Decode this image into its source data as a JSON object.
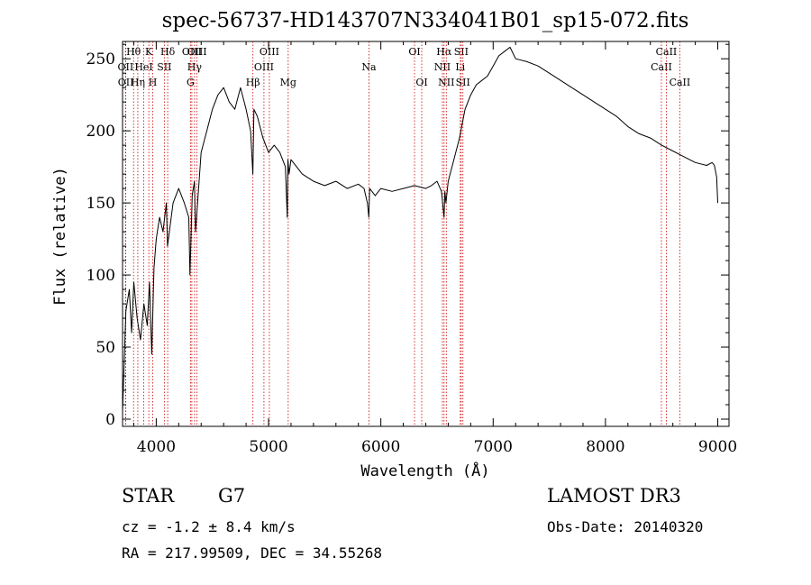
{
  "chart_data": {
    "type": "line",
    "title": "spec-56737-HD143707N334041B01_sp15-072.fits",
    "xlabel": "Wavelength (Å)",
    "ylabel": "Flux (relative)",
    "xlim": [
      3700,
      9100
    ],
    "ylim": [
      -5,
      262
    ],
    "xticks": [
      4000,
      5000,
      6000,
      7000,
      8000,
      9000
    ],
    "yticks": [
      0,
      50,
      100,
      150,
      200,
      250
    ],
    "grid": false,
    "line_color": "#000000",
    "marker_color": "#cc0000",
    "series": [
      {
        "name": "flux",
        "x": [
          3700,
          3730,
          3760,
          3780,
          3800,
          3830,
          3860,
          3890,
          3920,
          3940,
          3960,
          3980,
          4000,
          4030,
          4060,
          4090,
          4100,
          4150,
          4200,
          4250,
          4290,
          4300,
          4320,
          4340,
          4350,
          4400,
          4450,
          4500,
          4550,
          4600,
          4650,
          4700,
          4750,
          4800,
          4840,
          4860,
          4870,
          4900,
          4950,
          5000,
          5050,
          5100,
          5150,
          5167,
          5172,
          5183,
          5200,
          5250,
          5300,
          5400,
          5500,
          5600,
          5700,
          5800,
          5850,
          5880,
          5893,
          5900,
          5950,
          6000,
          6100,
          6200,
          6300,
          6400,
          6450,
          6500,
          6540,
          6563,
          6570,
          6580,
          6600,
          6650,
          6700,
          6750,
          6800,
          6850,
          6900,
          6950,
          7000,
          7050,
          7100,
          7150,
          7200,
          7300,
          7400,
          7500,
          7600,
          7700,
          7800,
          7900,
          8000,
          8100,
          8200,
          8300,
          8400,
          8500,
          8600,
          8700,
          8800,
          8900,
          8950,
          8970,
          8990,
          9000
        ],
        "y": [
          5,
          75,
          90,
          60,
          95,
          70,
          55,
          80,
          65,
          95,
          45,
          105,
          125,
          140,
          130,
          150,
          120,
          150,
          160,
          150,
          140,
          100,
          155,
          165,
          130,
          185,
          200,
          215,
          225,
          230,
          220,
          215,
          230,
          215,
          200,
          170,
          215,
          210,
          195,
          185,
          190,
          185,
          175,
          140,
          180,
          170,
          180,
          175,
          170,
          165,
          162,
          165,
          160,
          163,
          160,
          150,
          140,
          160,
          155,
          160,
          158,
          160,
          162,
          160,
          162,
          165,
          158,
          140,
          158,
          150,
          165,
          180,
          195,
          215,
          225,
          232,
          235,
          238,
          245,
          252,
          255,
          258,
          250,
          248,
          245,
          240,
          235,
          230,
          225,
          220,
          215,
          210,
          203,
          198,
          195,
          190,
          186,
          182,
          178,
          176,
          178,
          176,
          168,
          150
        ]
      }
    ],
    "line_markers": [
      {
        "label": "OII",
        "x": 3727,
        "row": 2
      },
      {
        "label": "OII",
        "x": 3729,
        "row": 3
      },
      {
        "label": "Hθ",
        "x": 3798,
        "row": 1
      },
      {
        "label": "Hη",
        "x": 3836,
        "row": 3
      },
      {
        "label": "HeI",
        "x": 3889,
        "row": 2
      },
      {
        "label": "K",
        "x": 3934,
        "row": 1
      },
      {
        "label": "H",
        "x": 3969,
        "row": 3
      },
      {
        "label": "SII",
        "x": 4072,
        "row": 2
      },
      {
        "label": "Hδ",
        "x": 4102,
        "row": 1
      },
      {
        "label": "G",
        "x": 4305,
        "row": 3
      },
      {
        "label": "OIII",
        "x": 4317,
        "row": 1
      },
      {
        "label": "Hγ",
        "x": 4341,
        "row": 2
      },
      {
        "label": "OIII",
        "x": 4363,
        "row": 1
      },
      {
        "label": "Hβ",
        "x": 4861,
        "row": 3
      },
      {
        "label": "OIII",
        "x": 4959,
        "row": 2
      },
      {
        "label": "OIII",
        "x": 5007,
        "row": 1
      },
      {
        "label": "Mg",
        "x": 5175,
        "row": 3
      },
      {
        "label": "Na",
        "x": 5894,
        "row": 2
      },
      {
        "label": "OI",
        "x": 6300,
        "row": 1
      },
      {
        "label": "OI",
        "x": 6364,
        "row": 3
      },
      {
        "label": "NII",
        "x": 6548,
        "row": 2
      },
      {
        "label": "Hα",
        "x": 6563,
        "row": 1
      },
      {
        "label": "NII",
        "x": 6583,
        "row": 3
      },
      {
        "label": "Li",
        "x": 6707,
        "row": 2
      },
      {
        "label": "SII",
        "x": 6716,
        "row": 1
      },
      {
        "label": "SII",
        "x": 6731,
        "row": 3
      },
      {
        "label": "CaII",
        "x": 8498,
        "row": 2
      },
      {
        "label": "CaII",
        "x": 8542,
        "row": 1
      },
      {
        "label": "CaII",
        "x": 8662,
        "row": 3
      }
    ]
  },
  "info": {
    "class_label": "STAR",
    "subclass": "G7",
    "cz": "cz = -1.2 ± 8.4 km/s",
    "coords": "RA = 217.99509, DEC =  34.55268",
    "survey": "LAMOST DR3",
    "obs_date": "Obs-Date: 20140320"
  }
}
